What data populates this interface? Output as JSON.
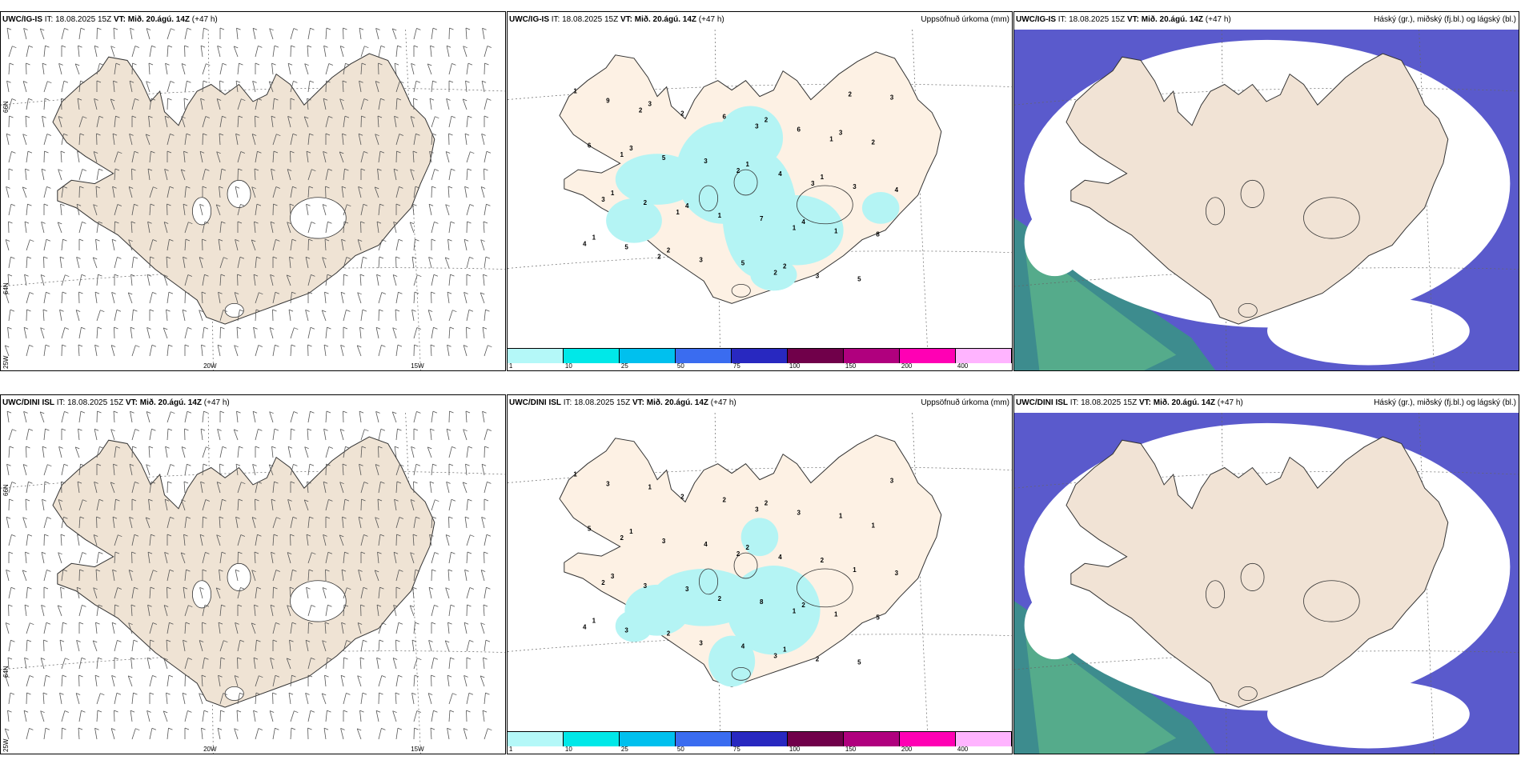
{
  "rows": [
    {
      "model": "UWC/IG-IS",
      "panels": [
        {
          "type": "wind",
          "title_model": "UWC/IG-IS",
          "it_label": "IT: 18.08.2025 15Z",
          "vt_label": "VT: Mið. 20.ágú. 14Z",
          "lead": "(+47 h)",
          "right_label": ""
        },
        {
          "type": "precip",
          "title_model": "UWC/IG-IS",
          "it_label": "IT: 18.08.2025 15Z",
          "vt_label": "VT: Mið. 20.ágú. 14Z",
          "lead": "(+47 h)",
          "right_label": "Uppsöfnuð úrkoma (mm)",
          "labels": [
            "1",
            "1",
            "1",
            "2",
            "1",
            "2",
            "3",
            "4",
            "3",
            "1",
            "2",
            "3",
            "4",
            "5",
            "3",
            "8",
            "6",
            "4",
            "5",
            "6",
            "7",
            "9",
            "4",
            "5",
            "6",
            "2",
            "3",
            "5",
            "1",
            "2",
            "3",
            "3",
            "2",
            "1",
            "3",
            "2",
            "4",
            "3",
            "3",
            "2",
            "1",
            "1",
            "2",
            "3",
            "2",
            "1",
            "1",
            "2"
          ]
        },
        {
          "type": "cloud",
          "title_model": "UWC/IG-IS",
          "it_label": "IT: 18.08.2025 15Z",
          "vt_label": "VT: Mið. 20.ágú. 14Z",
          "lead": "(+47 h)",
          "right_label": "Háský (gr.), miðský (fj.bl.) og lágský (bl.)"
        }
      ]
    },
    {
      "model": "UWC/DINI ISL",
      "panels": [
        {
          "type": "wind",
          "title_model": "UWC/DINI ISL",
          "it_label": "IT: 18.08.2025 15Z",
          "vt_label": "VT: Mið. 20.ágú. 14Z",
          "lead": "(+47 h)",
          "right_label": ""
        },
        {
          "type": "precip",
          "title_model": "UWC/DINI ISL",
          "it_label": "IT: 18.08.2025 15Z",
          "vt_label": "VT: Mið. 20.ágú. 14Z",
          "lead": "(+47 h)",
          "right_label": "Uppsöfnuð úrkoma (mm)",
          "labels": [
            "1",
            "2",
            "1",
            "2",
            "3",
            "1",
            "1",
            "2",
            "1",
            "2",
            "2",
            "1",
            "3",
            "5",
            "4",
            "5",
            "2",
            "3",
            "4",
            "5",
            "8",
            "3",
            "4",
            "3",
            "3",
            "3",
            "2",
            "3",
            "1",
            "2",
            "1",
            "3",
            "1",
            "2",
            "3",
            "2",
            "4",
            "3",
            "2",
            "3",
            "2",
            "1"
          ]
        },
        {
          "type": "cloud",
          "title_model": "UWC/DINI ISL",
          "it_label": "IT: 18.08.2025 15Z",
          "vt_label": "VT: Mið. 20.ágú. 14Z",
          "lead": "(+47 h)",
          "right_label": "Háský (gr.), miðský (fj.bl.) og lágský (bl.)"
        }
      ]
    }
  ],
  "graticule": {
    "lat": [
      "66N",
      "64N"
    ],
    "lon": [
      "25W",
      "20W",
      "15W"
    ]
  },
  "colorbar": {
    "ticks": [
      "1",
      "10",
      "25",
      "50",
      "75",
      "100",
      "150",
      "200",
      "400"
    ],
    "colors": [
      "#b4f8f8",
      "#00e8e8",
      "#00c0ee",
      "#3a6cf0",
      "#2828c0",
      "#70004a",
      "#b0007e",
      "#ff00b4",
      "#ffb4ff"
    ]
  },
  "colors": {
    "land_wind": "#efe3d4",
    "land_precip": "#fdf1e4",
    "land_cloud": "#f1e3d5",
    "precip_fill": "#b4f4f4",
    "cloud_low": "#5a5acc",
    "cloud_mid": "#6ea8ee",
    "cloud_high": "#5fb88a",
    "cloud_teal": "#3d8c8e",
    "coast": "#333333"
  }
}
